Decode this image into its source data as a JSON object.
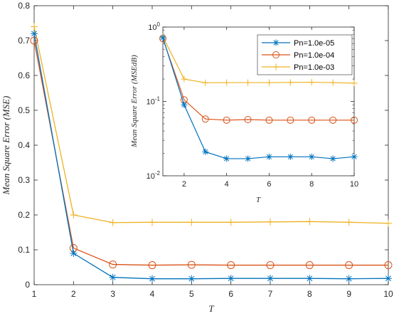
{
  "chart_data": [
    {
      "type": "line",
      "title": "",
      "xlabel": "T",
      "ylabel": "Mean Square Error (MSE)",
      "xlim": [
        1,
        10
      ],
      "ylim": [
        0,
        0.8
      ],
      "x_ticks": [
        "1",
        "2",
        "3",
        "4",
        "5",
        "6",
        "7",
        "8",
        "9",
        "10"
      ],
      "y_ticks": [
        "0",
        "0.1",
        "0.2",
        "0.3",
        "0.4",
        "0.5",
        "0.6",
        "0.7",
        "0.8"
      ],
      "x": [
        1,
        2,
        3,
        4,
        5,
        6,
        7,
        8,
        9,
        10
      ],
      "series": [
        {
          "name": "Pn=1.0e-05",
          "color": "#0072BD",
          "marker": "star",
          "values": [
            0.72,
            0.09,
            0.021,
            0.017,
            0.017,
            0.018,
            0.018,
            0.018,
            0.017,
            0.018
          ]
        },
        {
          "name": "Pn=1.0e-04",
          "color": "#D95319",
          "marker": "circle",
          "values": [
            0.7,
            0.105,
            0.058,
            0.056,
            0.057,
            0.056,
            0.056,
            0.056,
            0.056,
            0.056
          ]
        },
        {
          "name": "Pn=1.0e-03",
          "color": "#EDB120",
          "marker": "plus",
          "values": [
            0.74,
            0.2,
            0.178,
            0.179,
            0.179,
            0.179,
            0.18,
            0.181,
            0.179,
            0.176
          ]
        }
      ],
      "grid": false
    },
    {
      "type": "line",
      "title": "",
      "xlabel": "T",
      "ylabel": "Mean Square Error (MSEdB)",
      "yscale": "log",
      "xlim": [
        1,
        10
      ],
      "ylim": [
        0.01,
        1
      ],
      "x_ticks": [
        "2",
        "4",
        "6",
        "8",
        "10"
      ],
      "y_ticks": [
        {
          "base": "10",
          "exp": "0",
          "value": 1
        },
        {
          "base": "10",
          "exp": "-1",
          "value": 0.1
        },
        {
          "base": "10",
          "exp": "-2",
          "value": 0.01
        }
      ],
      "legend_position": "top-right",
      "legend": [
        "Pn=1.0e-05",
        "Pn=1.0e-04",
        "Pn=1.0e-03"
      ],
      "grid": false
    }
  ]
}
